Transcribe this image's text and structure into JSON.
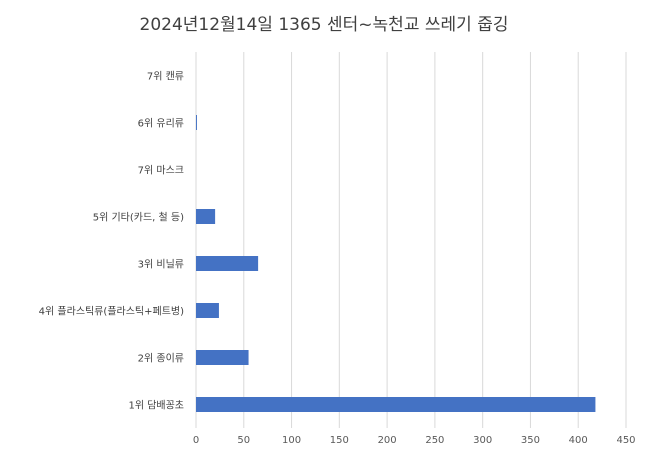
{
  "chart_data": {
    "type": "bar",
    "orientation": "horizontal",
    "title": "2024년12월14일 1365 센터~녹천교 쓰레기 줍깅",
    "categories": [
      "1위 담배꽁초",
      "2위 종이류",
      "4위 플라스틱류(플라스틱+페트병)",
      "3위 비닐류",
      "5위 기타(카드, 철 등)",
      "7위 마스크",
      "6위 유리류",
      "7위 캔류"
    ],
    "values": [
      418,
      55,
      24,
      65,
      20,
      0,
      1,
      0
    ],
    "x_ticks": [
      0,
      50,
      100,
      150,
      200,
      250,
      300,
      350,
      400,
      450
    ],
    "xlim": [
      0,
      450
    ],
    "grid": "vertical",
    "bar_color": "#4472C4",
    "legend": "none"
  }
}
